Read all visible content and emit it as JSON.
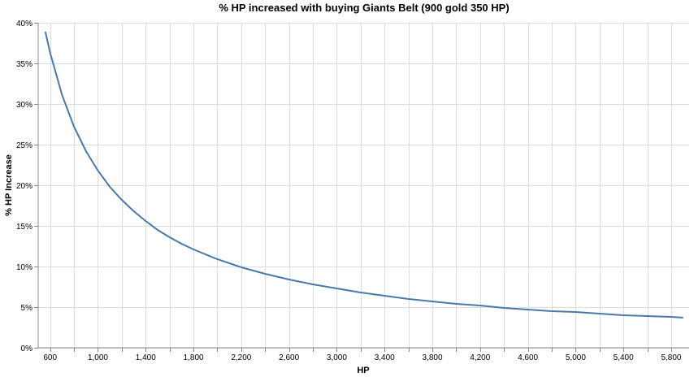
{
  "chart_data": {
    "type": "line",
    "title": "% HP increased with buying Giants Belt (900 gold 350 HP)",
    "xlabel": "HP",
    "ylabel": "% HP Increase",
    "xlim": [
      500,
      5950
    ],
    "ylim": [
      0,
      0.4
    ],
    "x_ticks": [
      600,
      1000,
      1400,
      1800,
      2200,
      2600,
      3000,
      3400,
      3800,
      4200,
      4600,
      5000,
      5400,
      5800
    ],
    "x_tick_labels": [
      "600",
      "1,000",
      "1,400",
      "1,800",
      "2,200",
      "2,600",
      "3,000",
      "3,400",
      "3,800",
      "4,200",
      "4,600",
      "5,000",
      "5,400",
      "5,800"
    ],
    "y_ticks": [
      0,
      0.05,
      0.1,
      0.15,
      0.2,
      0.25,
      0.3,
      0.35,
      0.4
    ],
    "y_tick_labels": [
      "0%",
      "5%",
      "10%",
      "15%",
      "20%",
      "25%",
      "30%",
      "35%",
      "40%"
    ],
    "grid": true,
    "series": [
      {
        "color": "#4c78a8",
        "x": [
          560,
          600,
          700,
          800,
          900,
          1000,
          1100,
          1200,
          1300,
          1400,
          1500,
          1600,
          1700,
          1800,
          1900,
          2000,
          2200,
          2400,
          2600,
          2800,
          3000,
          3200,
          3400,
          3600,
          3800,
          4000,
          4200,
          4400,
          4600,
          4800,
          5000,
          5200,
          5400,
          5600,
          5800,
          5900
        ],
        "y": [
          0.389,
          0.363,
          0.311,
          0.272,
          0.242,
          0.218,
          0.198,
          0.182,
          0.168,
          0.156,
          0.145,
          0.136,
          0.128,
          0.121,
          0.115,
          0.109,
          0.099,
          0.091,
          0.084,
          0.078,
          0.073,
          0.068,
          0.064,
          0.06,
          0.057,
          0.054,
          0.052,
          0.049,
          0.047,
          0.045,
          0.044,
          0.042,
          0.04,
          0.039,
          0.038,
          0.037
        ]
      }
    ]
  }
}
